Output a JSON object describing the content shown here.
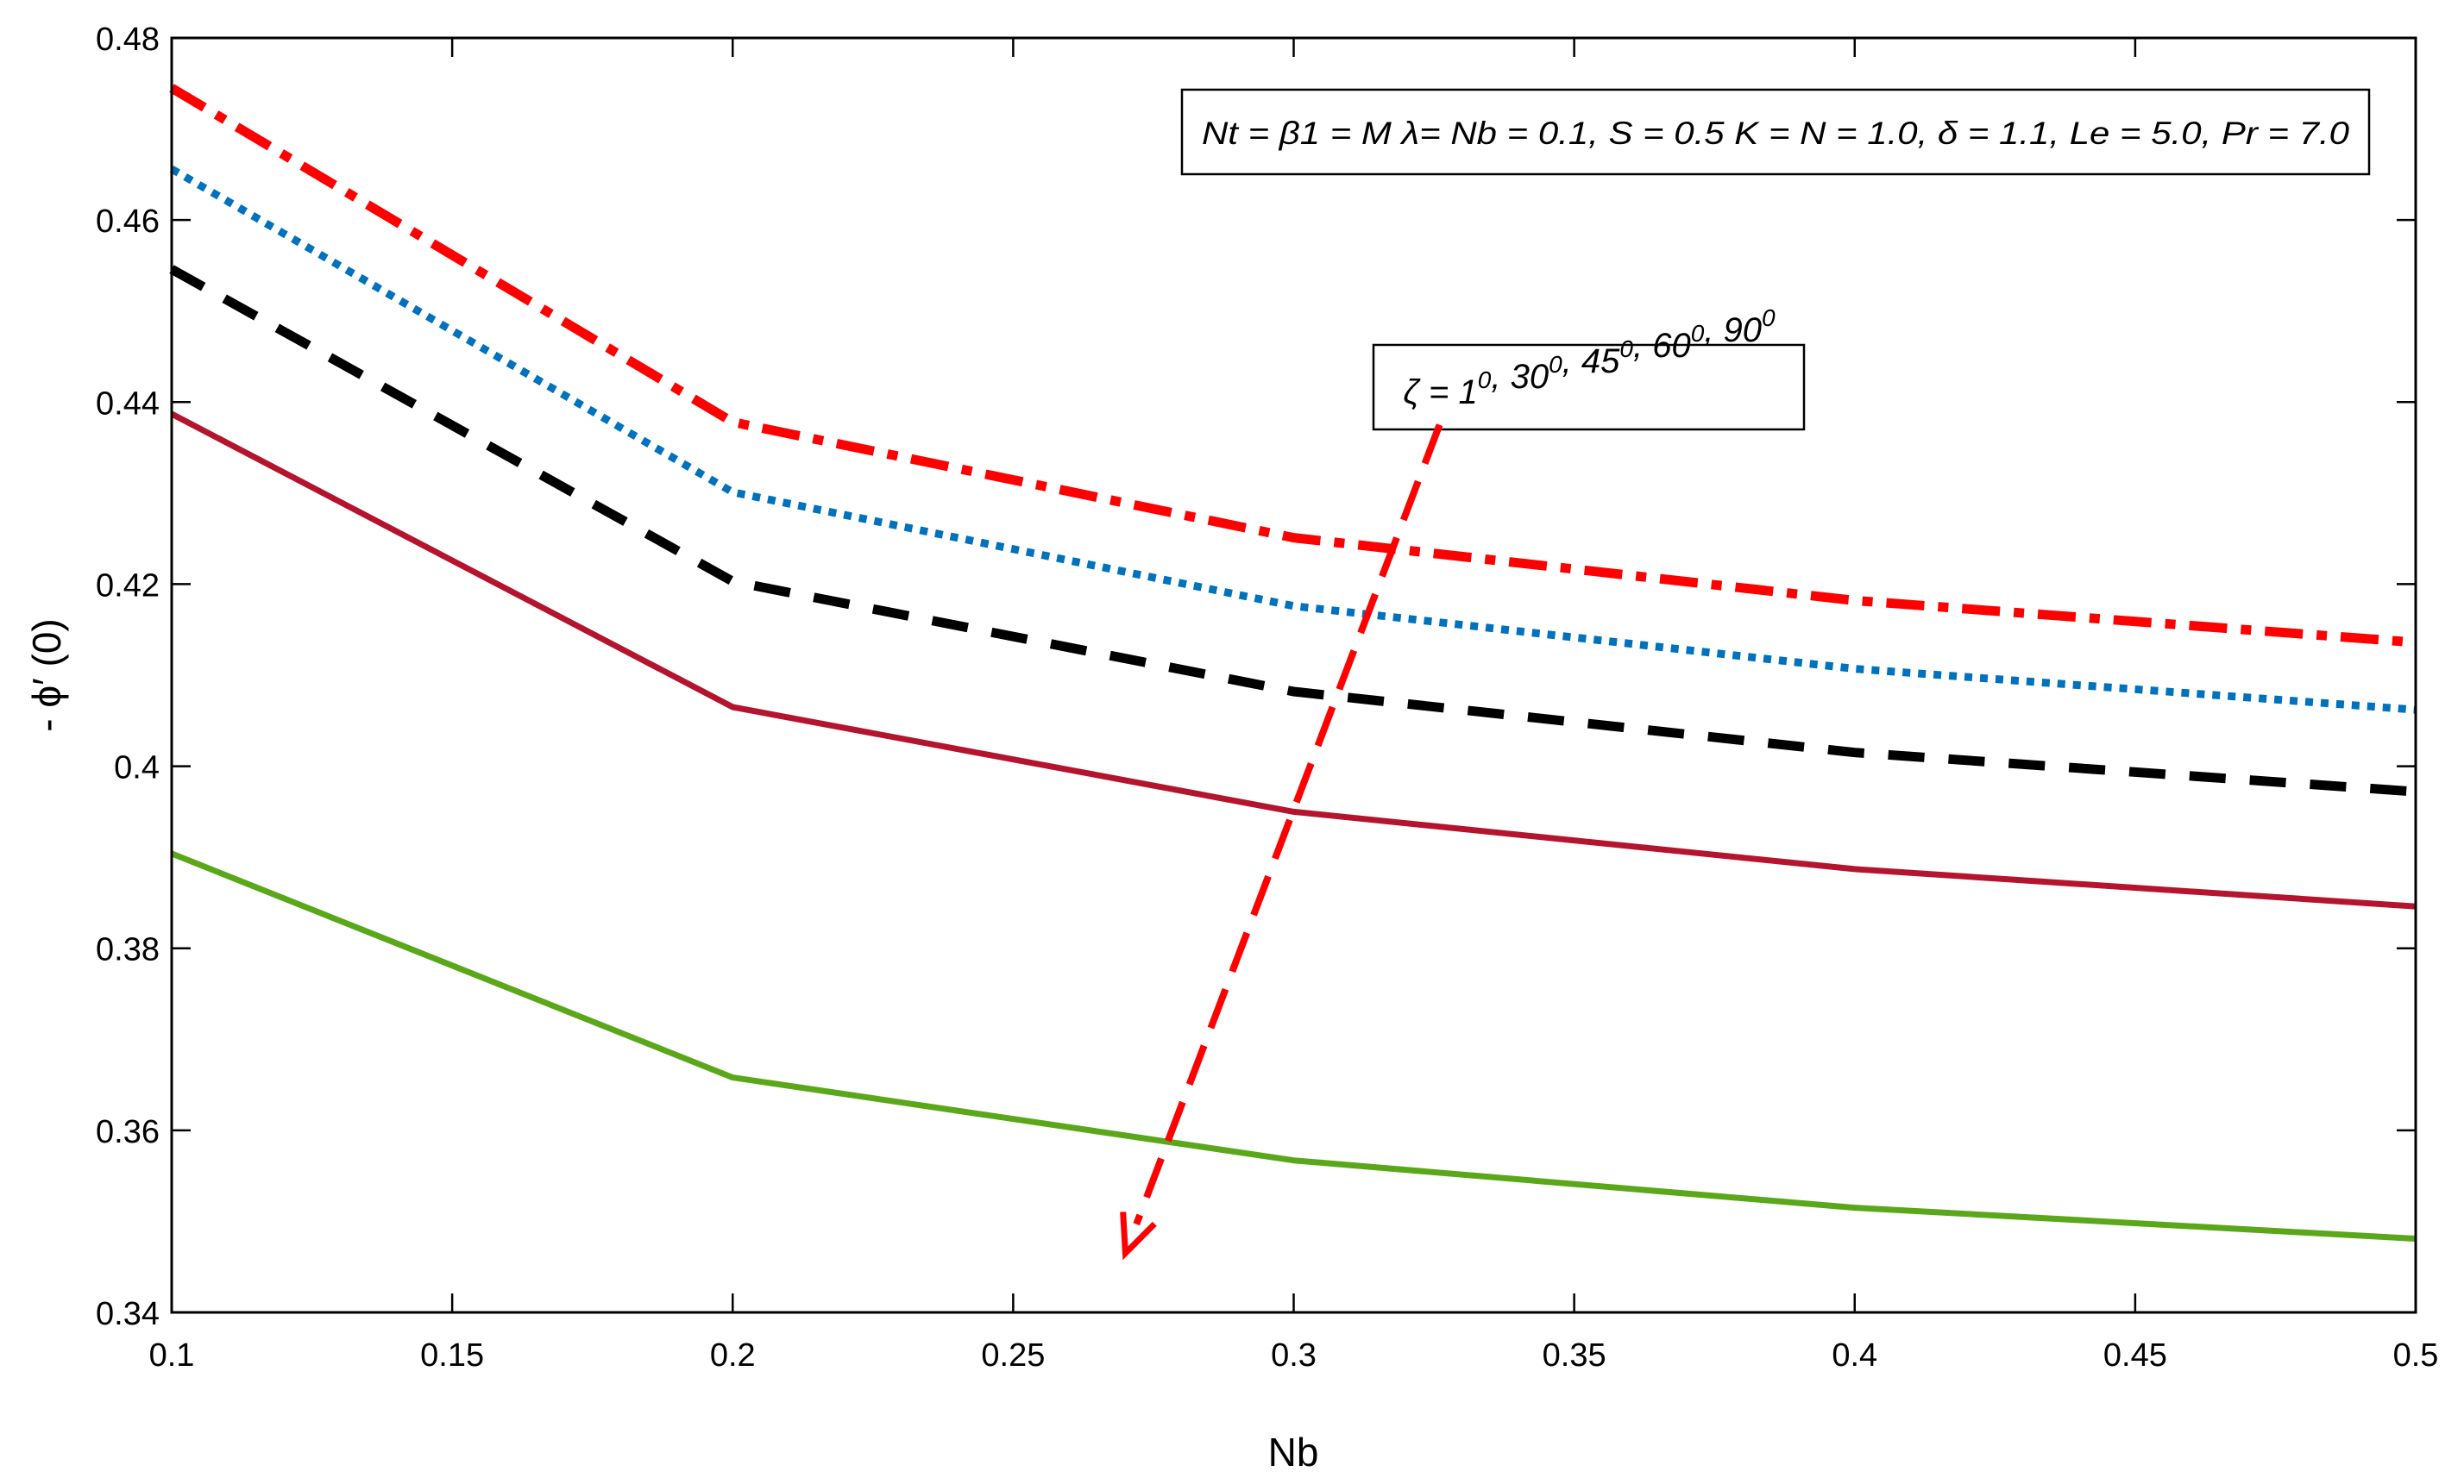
{
  "chart_data": {
    "type": "line",
    "xlabel": "Nb",
    "ylabel": "- ϕ′ (0)",
    "xlim": [
      0.1,
      0.5
    ],
    "ylim": [
      0.34,
      0.48
    ],
    "xticks": [
      "0.1",
      "0.15",
      "0.2",
      "0.25",
      "0.3",
      "0.35",
      "0.4",
      "0.45",
      "0.5"
    ],
    "yticks": [
      "0.34",
      "0.36",
      "0.38",
      "0.4",
      "0.42",
      "0.44",
      "0.46",
      "0.48"
    ],
    "x": [
      0.1,
      0.2,
      0.3,
      0.4,
      0.5
    ],
    "series": [
      {
        "name": "ζ = 1°",
        "style": "dashdot",
        "color": "#ff0000",
        "values": [
          0.4745,
          0.4378,
          0.4251,
          0.4182,
          0.4136
        ]
      },
      {
        "name": "ζ = 30°",
        "style": "dotted",
        "color": "#0072bd",
        "values": [
          0.4656,
          0.4301,
          0.4176,
          0.4107,
          0.4062
        ]
      },
      {
        "name": "ζ = 45°",
        "style": "dashed",
        "color": "#000000",
        "values": [
          0.4546,
          0.4203,
          0.4082,
          0.4015,
          0.3972
        ]
      },
      {
        "name": "ζ = 60°",
        "style": "solid",
        "color": "#b5142e",
        "values": [
          0.4387,
          0.4065,
          0.395,
          0.3887,
          0.3846
        ]
      },
      {
        "name": "ζ = 90°",
        "style": "solid",
        "color": "#5aa81a",
        "values": [
          0.3904,
          0.3658,
          0.3567,
          0.3515,
          0.3481
        ]
      }
    ],
    "annotations": {
      "params_box": "Nt = β1 = M λ= Nb = 0.1, S = 0.5 K = N = 1.0, δ = 1.1, Le = 5.0, Pr = 7.0",
      "zeta_box": {
        "prefix": "ζ = ",
        "values": [
          "1",
          "30",
          "45",
          "60",
          "90"
        ],
        "unit_sup": "0"
      },
      "arrow": {
        "from": [
          0.326,
          0.4375
        ],
        "to": [
          0.27,
          0.3465
        ],
        "color": "#ff0000"
      }
    }
  }
}
